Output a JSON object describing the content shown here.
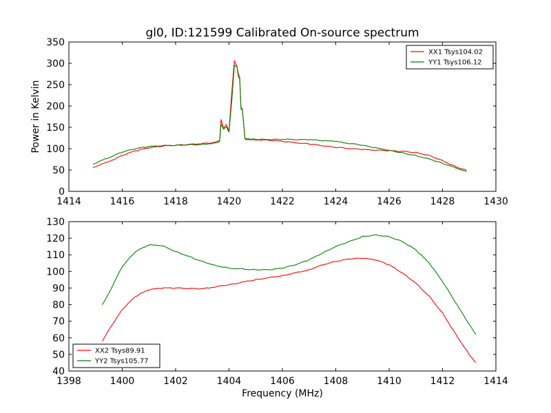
{
  "chart_data": [
    {
      "type": "line",
      "title": "gl0, ID:121599 Calibrated On-source spectrum",
      "xlabel": "",
      "ylabel": "Power in Kelvin",
      "xlim": [
        1414,
        1430
      ],
      "ylim": [
        0,
        350
      ],
      "xticks": [
        1414,
        1416,
        1418,
        1420,
        1422,
        1424,
        1426,
        1428,
        1430
      ],
      "yticks": [
        0,
        50,
        100,
        150,
        200,
        250,
        300,
        350
      ],
      "legend_position": "top-right",
      "series": [
        {
          "name": "XX1 Tsys104.02",
          "color": "#ff0000",
          "points": [
            [
              1414.9,
              56
            ],
            [
              1415.5,
              70
            ],
            [
              1416,
              84
            ],
            [
              1416.5,
              95
            ],
            [
              1417,
              102
            ],
            [
              1417.5,
              106
            ],
            [
              1418,
              108
            ],
            [
              1418.5,
              110
            ],
            [
              1419,
              112
            ],
            [
              1419.5,
              115
            ],
            [
              1419.65,
              119
            ],
            [
              1419.7,
              168
            ],
            [
              1419.8,
              148
            ],
            [
              1419.9,
              157
            ],
            [
              1420,
              142
            ],
            [
              1420.1,
              230
            ],
            [
              1420.2,
              307
            ],
            [
              1420.3,
              292
            ],
            [
              1420.35,
              275
            ],
            [
              1420.4,
              268
            ],
            [
              1420.45,
              196
            ],
            [
              1420.5,
              192
            ],
            [
              1420.6,
              122
            ],
            [
              1421,
              121
            ],
            [
              1421.5,
              120
            ],
            [
              1422,
              117
            ],
            [
              1423,
              111
            ],
            [
              1424,
              103
            ],
            [
              1425,
              98
            ],
            [
              1426,
              95
            ],
            [
              1426.5,
              94
            ],
            [
              1427,
              91
            ],
            [
              1427.5,
              84
            ],
            [
              1428,
              72
            ],
            [
              1428.5,
              58
            ],
            [
              1428.9,
              49
            ]
          ]
        },
        {
          "name": "YY1 Tsys106.12",
          "color": "#008000",
          "points": [
            [
              1414.9,
              64
            ],
            [
              1415.5,
              79
            ],
            [
              1416,
              92
            ],
            [
              1416.5,
              100
            ],
            [
              1417,
              105
            ],
            [
              1417.5,
              107
            ],
            [
              1418,
              108
            ],
            [
              1418.5,
              109
            ],
            [
              1419,
              110
            ],
            [
              1419.5,
              113
            ],
            [
              1419.65,
              117
            ],
            [
              1419.7,
              158
            ],
            [
              1419.8,
              146
            ],
            [
              1419.9,
              152
            ],
            [
              1420,
              139
            ],
            [
              1420.1,
              210
            ],
            [
              1420.2,
              296
            ],
            [
              1420.3,
              290
            ],
            [
              1420.35,
              268
            ],
            [
              1420.4,
              262
            ],
            [
              1420.45,
              192
            ],
            [
              1420.5,
              190
            ],
            [
              1420.6,
              124
            ],
            [
              1421,
              122
            ],
            [
              1421.5,
              121
            ],
            [
              1422,
              122
            ],
            [
              1423,
              121
            ],
            [
              1424,
              117
            ],
            [
              1425,
              108
            ],
            [
              1426,
              96
            ],
            [
              1426.5,
              90
            ],
            [
              1427,
              84
            ],
            [
              1427.5,
              76
            ],
            [
              1428,
              66
            ],
            [
              1428.5,
              55
            ],
            [
              1428.9,
              46
            ]
          ]
        }
      ]
    },
    {
      "type": "line",
      "title": "",
      "xlabel": "Frequency (MHz)",
      "ylabel": "",
      "xlim": [
        1398,
        1414
      ],
      "ylim": [
        40,
        130
      ],
      "xticks": [
        1398,
        1400,
        1402,
        1404,
        1406,
        1408,
        1410,
        1412,
        1414
      ],
      "yticks": [
        40,
        50,
        60,
        70,
        80,
        90,
        100,
        110,
        120,
        130
      ],
      "legend_position": "bottom-left",
      "series": [
        {
          "name": "XX2 Tsys89.91",
          "color": "#ff0000",
          "points": [
            [
              1399.25,
              58
            ],
            [
              1399.5,
              65
            ],
            [
              1400,
              77
            ],
            [
              1400.5,
              85
            ],
            [
              1401,
              89
            ],
            [
              1401.5,
              90
            ],
            [
              1402,
              90
            ],
            [
              1403,
              89.5
            ],
            [
              1404,
              92
            ],
            [
              1405,
              95
            ],
            [
              1406,
              97.5
            ],
            [
              1407,
              101
            ],
            [
              1407.5,
              104
            ],
            [
              1408,
              106
            ],
            [
              1408.5,
              107.5
            ],
            [
              1409,
              108
            ],
            [
              1409.5,
              107
            ],
            [
              1410,
              104
            ],
            [
              1410.5,
              99
            ],
            [
              1411,
              93
            ],
            [
              1411.5,
              85
            ],
            [
              1412,
              75
            ],
            [
              1412.5,
              62
            ],
            [
              1413,
              50
            ],
            [
              1413.25,
              45
            ]
          ]
        },
        {
          "name": "YY2 Tsys105.77",
          "color": "#008000",
          "points": [
            [
              1399.25,
              80
            ],
            [
              1399.5,
              87
            ],
            [
              1400,
              103
            ],
            [
              1400.5,
              112
            ],
            [
              1401,
              116
            ],
            [
              1401.5,
              115.5
            ],
            [
              1402,
              112
            ],
            [
              1402.5,
              109
            ],
            [
              1403,
              106
            ],
            [
              1403.5,
              103.5
            ],
            [
              1404,
              102
            ],
            [
              1405,
              101
            ],
            [
              1405.5,
              101
            ],
            [
              1406,
              102
            ],
            [
              1406.5,
              104
            ],
            [
              1407,
              107
            ],
            [
              1407.5,
              111
            ],
            [
              1408,
              115
            ],
            [
              1408.5,
              118
            ],
            [
              1409,
              121
            ],
            [
              1409.5,
              122
            ],
            [
              1410,
              121
            ],
            [
              1410.5,
              118
            ],
            [
              1411,
              113
            ],
            [
              1411.5,
              105
            ],
            [
              1412,
              94
            ],
            [
              1412.5,
              81
            ],
            [
              1413,
              68
            ],
            [
              1413.25,
              62
            ]
          ]
        }
      ]
    }
  ]
}
